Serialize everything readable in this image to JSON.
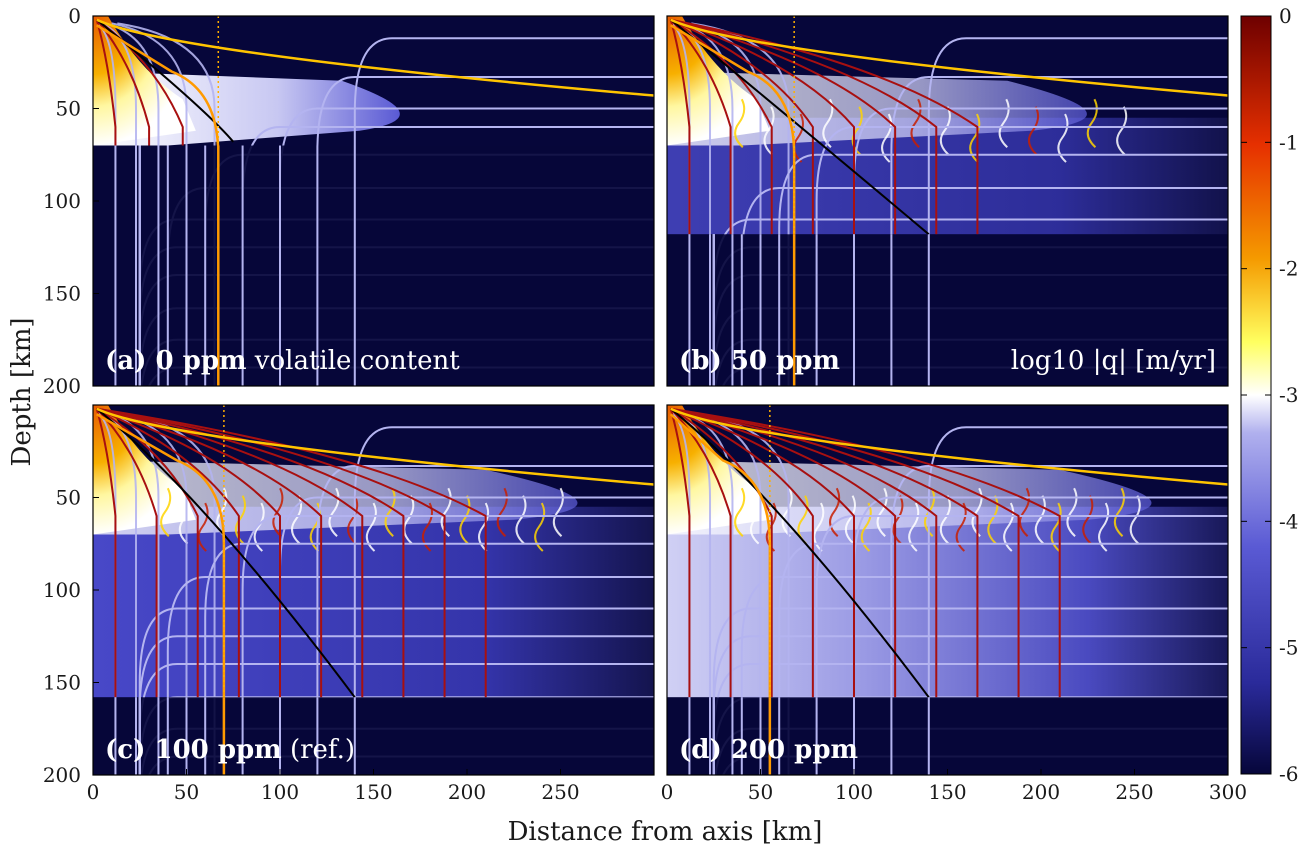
{
  "chart_data": {
    "type": "heatmap",
    "xlabel": "Distance from axis [km]",
    "ylabel": "Depth [km]",
    "colorbar_label": "log10 |q| [m/yr]",
    "colorbar": {
      "range": [
        -6,
        0
      ],
      "ticks": [
        "0",
        "-1",
        "-2",
        "-3",
        "-4",
        "-5",
        "-6"
      ],
      "colormap": [
        "#06063a",
        "#3a3ac8",
        "#8c8ce6",
        "#ffffff",
        "#ffff50",
        "#f59a00",
        "#e63000",
        "#6e0000"
      ]
    },
    "x_ticks": [
      "0",
      "50",
      "100",
      "150",
      "200",
      "250",
      "300"
    ],
    "y_ticks": [
      "0",
      "50",
      "100",
      "150",
      "200"
    ],
    "panels": [
      {
        "id": "a",
        "tag": "(a)",
        "bold": "0 ppm",
        "rest": "volatile content",
        "xlim": [
          0,
          300
        ],
        "ylim": [
          0,
          200
        ],
        "x_tick_labels": [],
        "y_tick_labels": [
          "0",
          "50",
          "100",
          "150",
          "200"
        ],
        "melt_region_base_depth": 70,
        "orange_line_x": 67,
        "colors": {
          "hot": "#f59a00",
          "white": "#ffffff"
        }
      },
      {
        "id": "b",
        "tag": "(b)",
        "bold": "50 ppm",
        "rest": "",
        "xlim": [
          0,
          300
        ],
        "ylim": [
          0,
          200
        ],
        "x_tick_labels": [],
        "y_tick_labels": [],
        "melt_region_base_depth": 118,
        "orange_line_x": 68
      },
      {
        "id": "c",
        "tag": "(c)",
        "bold": "100 ppm",
        "rest": "(ref.)",
        "xlim": [
          0,
          300
        ],
        "ylim": [
          0,
          200
        ],
        "x_tick_labels": [
          "0",
          "50",
          "100",
          "150",
          "200",
          "250"
        ],
        "y_tick_labels": [
          "",
          "50",
          "100",
          "150",
          "200"
        ],
        "melt_region_base_depth": 158,
        "orange_line_x": 70
      },
      {
        "id": "d",
        "tag": "(d)",
        "bold": "200 ppm",
        "rest": "",
        "xlim": [
          0,
          300
        ],
        "ylim": [
          0,
          200
        ],
        "x_tick_labels": [
          "0",
          "50",
          "100",
          "150",
          "200",
          "250",
          "300"
        ],
        "y_tick_labels": [],
        "melt_region_base_depth": 158,
        "orange_line_x": 55
      }
    ],
    "streamline_x_starts": [
      12,
      23,
      35,
      50,
      65,
      80,
      95,
      110,
      125,
      140,
      155,
      170,
      185,
      200,
      215,
      230,
      245,
      260,
      275,
      290
    ],
    "flow_line_depths": [
      12,
      33,
      50,
      60,
      75,
      93,
      110,
      125,
      140,
      158,
      175,
      190
    ]
  }
}
